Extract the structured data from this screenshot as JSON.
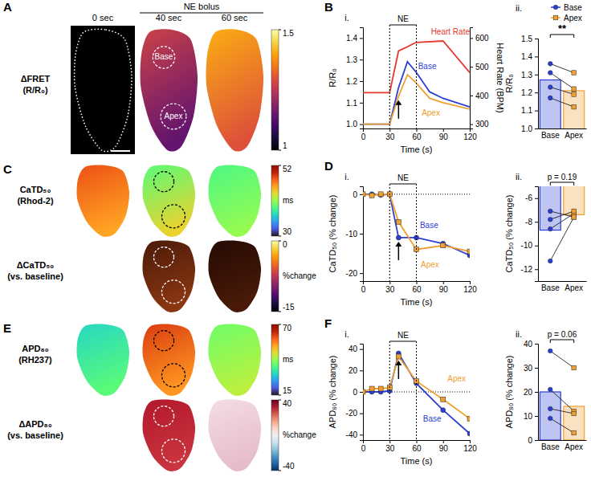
{
  "chart_data": [
    {
      "type": "image_maps",
      "panel": "A",
      "column_labels": [
        "0 sec",
        "40 sec",
        "60 sec"
      ],
      "group_label": "NE bolus",
      "roi_labels": [
        "Base",
        "Apex"
      ],
      "rows": [
        {
          "label": [
            "ΔFRET",
            "(R/R₀)"
          ],
          "colorbar": {
            "range": [
              1,
              1.5
            ],
            "ticks": [
              1,
              1.5
            ]
          }
        }
      ]
    },
    {
      "type": "line",
      "panel": "B",
      "subtitle": "i.",
      "x": [
        0,
        10,
        20,
        30,
        40,
        50,
        60,
        75,
        90,
        120
      ],
      "xlim": [
        0,
        120
      ],
      "xticks": [
        0,
        30,
        60,
        90,
        120
      ],
      "xlabel": "Time (s)",
      "ylabel": "R/R₀",
      "ylim": [
        0.98,
        1.45
      ],
      "yticks": [
        {
          "value": 1,
          "label": "1.0"
        },
        1.1,
        1.2,
        1.3,
        1.4
      ],
      "y2label": "Heart Rate (BPM)",
      "y2lim": [
        285,
        637.5
      ],
      "y2ticks": [
        300,
        400,
        500,
        600
      ],
      "ne_interval": [
        30,
        60
      ],
      "ne_label": "NE",
      "arrow_x": 40,
      "series": [
        {
          "name": "Heart Rate",
          "color": "#e8382d",
          "axis": "y2",
          "marker": "none",
          "x": [
            0,
            30,
            40,
            60,
            90,
            120
          ],
          "values": [
            410,
            410,
            555,
            585,
            590,
            480
          ]
        },
        {
          "name": "Base",
          "color": "#2b3fd6",
          "marker": "none",
          "values": [
            1,
            1,
            1,
            1,
            1.17,
            1.29,
            1.24,
            1.15,
            1.12,
            1.08
          ]
        },
        {
          "name": "Apex",
          "color": "#f0a030",
          "marker": "none",
          "values": [
            1,
            1,
            1,
            1,
            1.13,
            1.23,
            1.19,
            1.12,
            1.1,
            1.07
          ]
        }
      ]
    },
    {
      "type": "bar",
      "subtitle": "ii.",
      "categories": [
        "Base",
        "Apex"
      ],
      "values": [
        1.27,
        1.21
      ],
      "points": [
        [
          1.36,
          1.31,
          1.23,
          1.17
        ],
        [
          1.31,
          1.22,
          1.19,
          1.12
        ]
      ],
      "colors": [
        "#2b3fd6",
        "#f0a030"
      ],
      "ylabel": "R/R₀",
      "ylim": [
        1,
        1.5
      ],
      "yticks": [
        {
          "value": 1,
          "label": "1.0"
        },
        1.1,
        1.2,
        1.3,
        1.4,
        1.5
      ],
      "annotation": "**",
      "legend": "top-right"
    },
    {
      "type": "image_maps",
      "panel": "C",
      "rows": [
        {
          "label": [
            "CaTD₅₀",
            "(Rhod-2)"
          ],
          "colorbar": {
            "range": [
              30,
              52
            ],
            "ticks": [
              30,
              52
            ],
            "unit": "ms"
          }
        },
        {
          "label": [
            "ΔCaTD₅₀",
            "(vs. baseline)"
          ],
          "colorbar": {
            "range": [
              -15,
              0
            ],
            "ticks": [
              -15,
              0
            ],
            "unit": "%change"
          }
        }
      ]
    },
    {
      "type": "line",
      "panel": "D",
      "subtitle": "i.",
      "x": [
        0,
        10,
        20,
        30,
        40,
        60,
        90,
        120
      ],
      "xlim": [
        0,
        120
      ],
      "xticks": [
        0,
        30,
        60,
        90,
        120
      ],
      "xlabel": "Time (s)",
      "ylabel": "CaTD₅₀ (% change)",
      "ylim": [
        -22,
        2
      ],
      "yticks": [
        -20,
        -10,
        0
      ],
      "hline": 0,
      "ne_interval": [
        30,
        60
      ],
      "ne_label": "NE",
      "arrow_x": 40,
      "series": [
        {
          "name": "Base",
          "color": "#2b3fd6",
          "marker": "circle",
          "values": [
            0,
            0,
            -0.2,
            0,
            -11,
            -11,
            -12.5,
            -15.5
          ]
        },
        {
          "name": "Apex",
          "color": "#f0a030",
          "marker": "square",
          "values": [
            0,
            -0.3,
            0,
            0,
            -7,
            -14,
            -13,
            -14.5
          ]
        }
      ]
    },
    {
      "type": "bar",
      "subtitle": "ii.",
      "categories": [
        "Base",
        "Apex"
      ],
      "values": [
        -8.7,
        -7.4
      ],
      "points": [
        [
          -11.3,
          -8.6,
          -7.8,
          -7.1
        ],
        [
          -7.6,
          -7.3,
          -7.1,
          -7.6
        ]
      ],
      "colors": [
        "#2b3fd6",
        "#f0a030"
      ],
      "ylabel": "CaTD₅₀ (% change)",
      "ylim": [
        -13,
        -5
      ],
      "yticks": [
        -12,
        -10,
        -8,
        -6
      ],
      "annotation": "p = 0.19"
    },
    {
      "type": "image_maps",
      "panel": "E",
      "rows": [
        {
          "label": [
            "APD₈₀",
            "(RH237)"
          ],
          "colorbar": {
            "range": [
              15,
              70
            ],
            "ticks": [
              15,
              70
            ],
            "unit": "ms"
          }
        },
        {
          "label": [
            "ΔAPD₈₀",
            "(vs. baseline)"
          ],
          "colorbar": {
            "range": [
              -40,
              40
            ],
            "ticks": [
              -40,
              40
            ],
            "unit": "%change"
          }
        }
      ]
    },
    {
      "type": "line",
      "panel": "F",
      "subtitle": "i.",
      "x": [
        0,
        10,
        20,
        30,
        40,
        60,
        90,
        120
      ],
      "xlim": [
        0,
        120
      ],
      "xticks": [
        0,
        30,
        60,
        90,
        120
      ],
      "xlabel": "Time (s)",
      "ylabel": "APD₈₀ (% change)",
      "ylim": [
        -45,
        45
      ],
      "yticks": [
        -40,
        -20,
        0,
        20,
        40
      ],
      "hline": 0,
      "ne_interval": [
        30,
        60
      ],
      "ne_label": "NE",
      "arrow_x": 40,
      "series": [
        {
          "name": "Base",
          "color": "#2b3fd6",
          "marker": "circle",
          "values": [
            0,
            0,
            0,
            1,
            36,
            8,
            -17,
            -39
          ]
        },
        {
          "name": "Apex",
          "color": "#f0a030",
          "marker": "square",
          "values": [
            0,
            3,
            3,
            4,
            33,
            10,
            -7,
            -25
          ]
        }
      ]
    },
    {
      "type": "bar",
      "subtitle": "ii.",
      "categories": [
        "Base",
        "Apex"
      ],
      "values": [
        20,
        14
      ],
      "points": [
        [
          37,
          21,
          13,
          9
        ],
        [
          30,
          12,
          11,
          3
        ]
      ],
      "colors": [
        "#2b3fd6",
        "#f0a030"
      ],
      "ylabel": "APD₈₀ (% change)",
      "ylim": [
        0,
        40
      ],
      "yticks": [
        0,
        10,
        20,
        30,
        40
      ],
      "annotation": "p = 0.06"
    }
  ]
}
